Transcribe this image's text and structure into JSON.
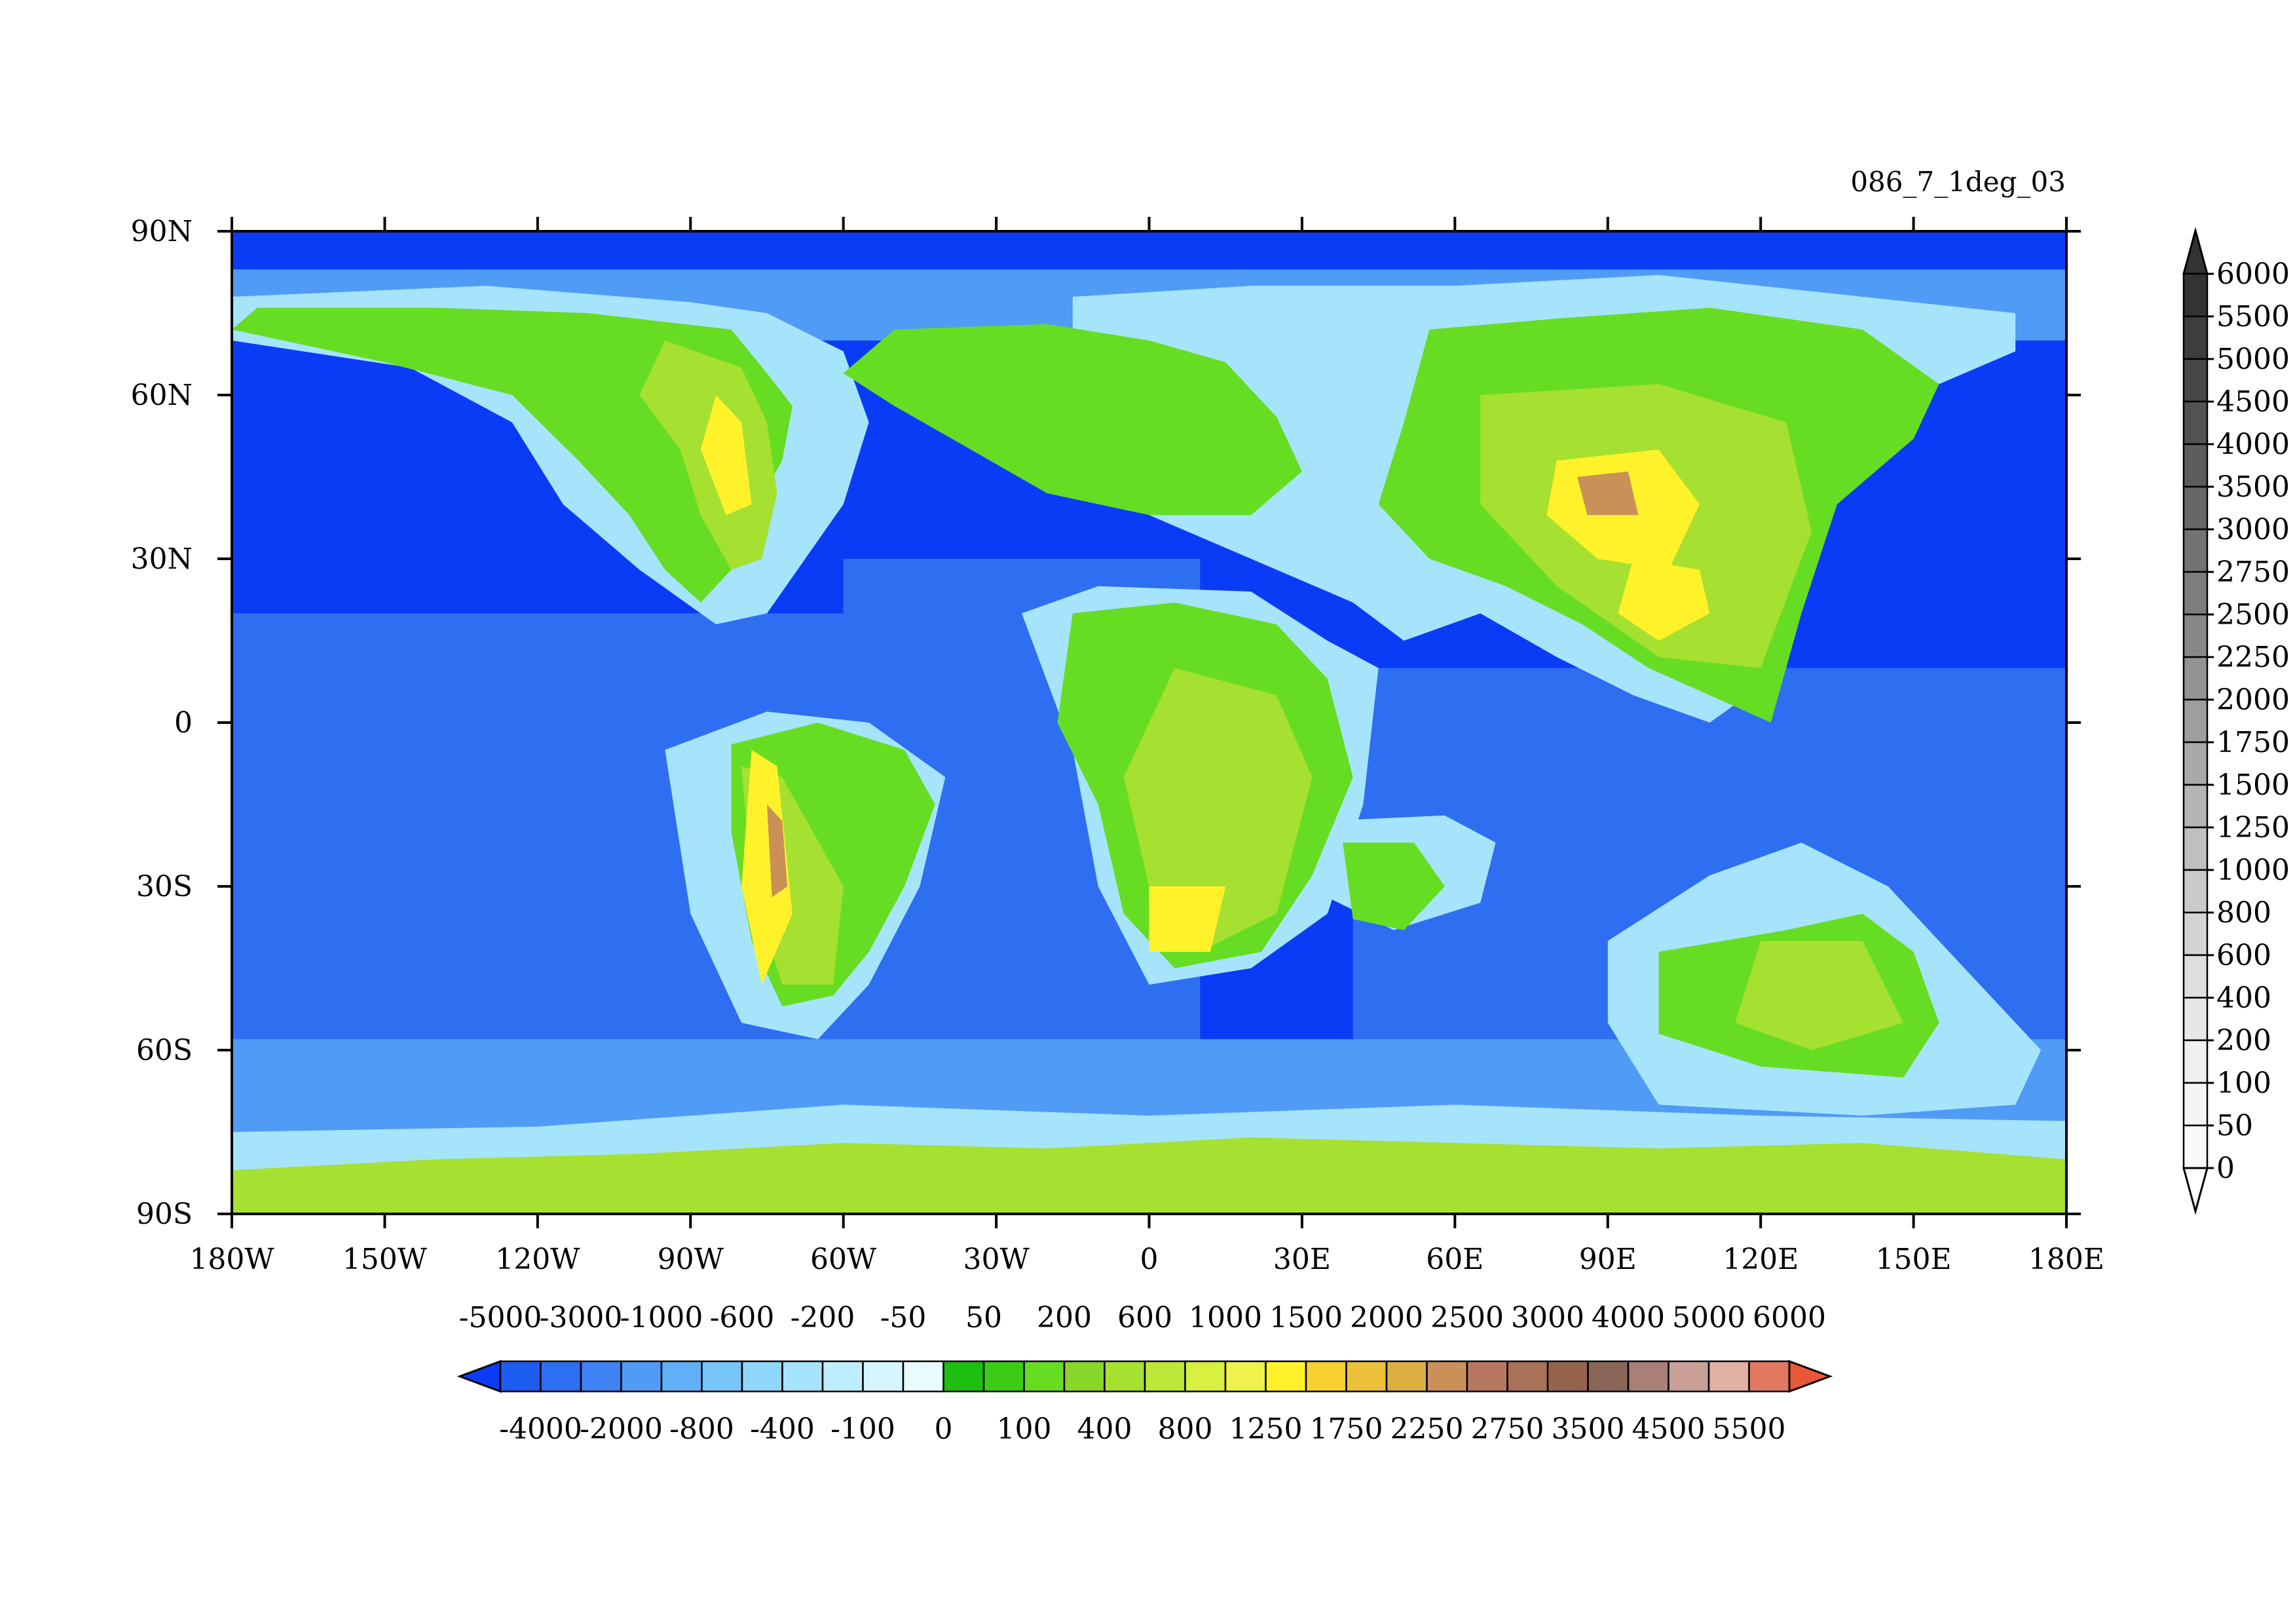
{
  "figure": {
    "title_right": "086_7_1deg_03"
  },
  "map": {
    "lon_range": [
      -180,
      180
    ],
    "lat_range": [
      -90,
      90
    ],
    "lon_ticks": [
      {
        "value": -180,
        "label": "180W"
      },
      {
        "value": -150,
        "label": "150W"
      },
      {
        "value": -120,
        "label": "120W"
      },
      {
        "value": -90,
        "label": "90W"
      },
      {
        "value": -60,
        "label": "60W"
      },
      {
        "value": -30,
        "label": "30W"
      },
      {
        "value": 0,
        "label": "0"
      },
      {
        "value": 30,
        "label": "30E"
      },
      {
        "value": 60,
        "label": "60E"
      },
      {
        "value": 90,
        "label": "90E"
      },
      {
        "value": 120,
        "label": "120E"
      },
      {
        "value": 150,
        "label": "150E"
      },
      {
        "value": 180,
        "label": "180E"
      }
    ],
    "lat_ticks": [
      {
        "value": 90,
        "label": "90N"
      },
      {
        "value": 60,
        "label": "60N"
      },
      {
        "value": 30,
        "label": "30N"
      },
      {
        "value": 0,
        "label": "0"
      },
      {
        "value": -30,
        "label": "30S"
      },
      {
        "value": -60,
        "label": "60S"
      },
      {
        "value": -90,
        "label": "90S"
      }
    ]
  },
  "colorbar_h": {
    "levels": [
      -5000,
      -4000,
      -3000,
      -2000,
      -1000,
      -800,
      -600,
      -400,
      -200,
      -100,
      -50,
      0,
      50,
      100,
      200,
      400,
      600,
      800,
      1000,
      1250,
      1500,
      1750,
      2000,
      2250,
      2500,
      2750,
      3000,
      3500,
      4000,
      4500,
      5000,
      5500,
      6000
    ],
    "labels_top": [
      "-5000",
      "-3000",
      "-1000",
      "-600",
      "-200",
      "-50",
      "50",
      "200",
      "600",
      "1000",
      "1500",
      "2000",
      "2500",
      "3000",
      "4000",
      "5000",
      "6000"
    ],
    "labels_bottom": [
      "-4000",
      "-2000",
      "-800",
      "-400",
      "-100",
      "0",
      "100",
      "400",
      "800",
      "1250",
      "1750",
      "2250",
      "2750",
      "3500",
      "4500",
      "5500"
    ],
    "colors": [
      "#0b3cf5",
      "#1d5cf0",
      "#2e6ff2",
      "#3f82f4",
      "#509bf6",
      "#62b0f8",
      "#78c5fa",
      "#8fd6fb",
      "#a6e4fc",
      "#bdeefd",
      "#d6f6fe",
      "#e8fbfe",
      "#1fbf12",
      "#3ccc18",
      "#66dd22",
      "#8ad52a",
      "#a6e030",
      "#bde838",
      "#d8f040",
      "#eef24a",
      "#fff22a",
      "#f8d030",
      "#ecc038",
      "#dcb040",
      "#c99058",
      "#b87860",
      "#a87258",
      "#94644c",
      "#8a6658",
      "#a88076",
      "#c8a098",
      "#e0b0a0",
      "#e27860",
      "#e85838"
    ]
  },
  "colorbar_v": {
    "labels": [
      "6000",
      "5500",
      "5000",
      "4500",
      "4000",
      "3500",
      "3000",
      "2750",
      "2500",
      "2250",
      "2000",
      "1750",
      "1500",
      "1250",
      "1000",
      "800",
      "600",
      "400",
      "200",
      "100",
      "50",
      "0"
    ],
    "colors": [
      "#333333",
      "#3d3d3d",
      "#474747",
      "#525252",
      "#5c5c5c",
      "#676767",
      "#727272",
      "#7d7d7d",
      "#888888",
      "#939393",
      "#9e9e9e",
      "#a9a9a9",
      "#b4b4b4",
      "#bfbfbf",
      "#cacaca",
      "#d4d4d4",
      "#dedede",
      "#e7e7e7",
      "#efefef",
      "#f5f5f5",
      "#fafafa"
    ],
    "top_triangle_color": "#333333",
    "bottom_triangle_color": "#ffffff"
  },
  "palette": {
    "deep_ocean": "#0b3cf5",
    "ocean_mid": "#2e6ff2",
    "ocean_light": "#509bf6",
    "shelf": "#a6e4fc",
    "lowland": "#66dd22",
    "upland": "#a6e030",
    "highland": "#fff22a",
    "mountain": "#c99058"
  }
}
